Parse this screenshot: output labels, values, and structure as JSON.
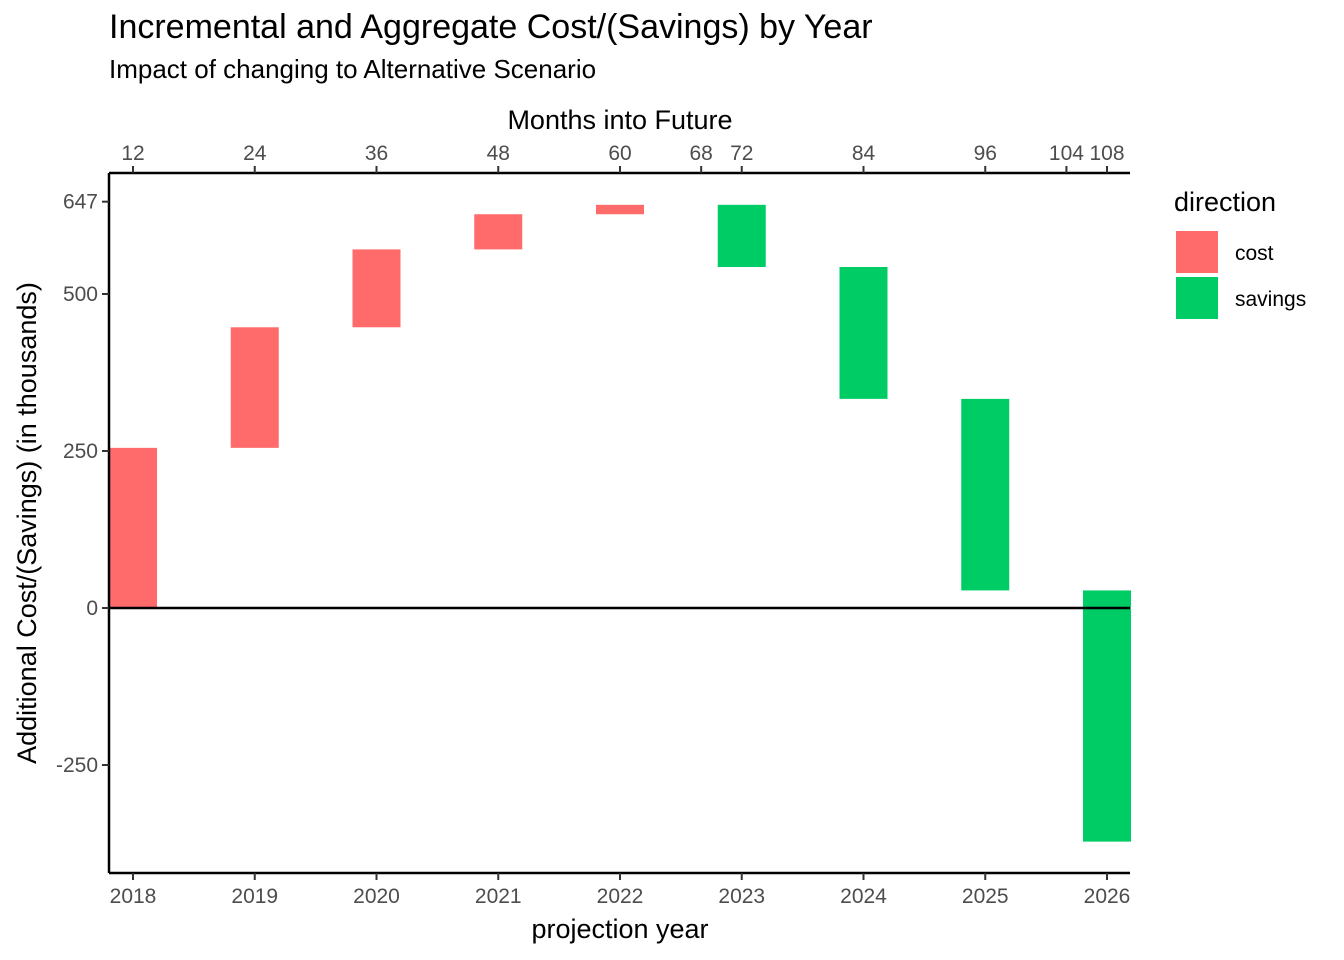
{
  "chart_data": {
    "type": "waterfall",
    "title": "Incremental and Aggregate Cost/(Savings) by Year",
    "subtitle": "Impact of changing to Alternative Scenario",
    "xlabel": "projection year",
    "ylabel": "Additional Cost/(Savings) (in thousands)",
    "secondary_xlabel": "Months into Future",
    "categories": [
      "2018",
      "2019",
      "2020",
      "2021",
      "2022",
      "2023",
      "2024",
      "2025",
      "2026"
    ],
    "bars": [
      {
        "year": "2018",
        "start": 0,
        "end": 255,
        "direction": "cost"
      },
      {
        "year": "2019",
        "start": 255,
        "end": 447,
        "direction": "cost"
      },
      {
        "year": "2020",
        "start": 447,
        "end": 571,
        "direction": "cost"
      },
      {
        "year": "2021",
        "start": 571,
        "end": 627,
        "direction": "cost"
      },
      {
        "year": "2022",
        "start": 627,
        "end": 642,
        "direction": "cost"
      },
      {
        "year": "2023",
        "start": 642,
        "end": 543,
        "direction": "savings"
      },
      {
        "year": "2024",
        "start": 543,
        "end": 333,
        "direction": "savings"
      },
      {
        "year": "2025",
        "start": 333,
        "end": 28,
        "direction": "savings"
      },
      {
        "year": "2026",
        "start": 28,
        "end": -372,
        "direction": "savings"
      }
    ],
    "y_ticks": [
      -250,
      0,
      250,
      500,
      647
    ],
    "ylim": [
      -420,
      695
    ],
    "x_range": [
      2018,
      2026
    ],
    "top_axis_ticks": [
      {
        "month": 12,
        "label": "12"
      },
      {
        "month": 24,
        "label": "24"
      },
      {
        "month": 36,
        "label": "36"
      },
      {
        "month": 48,
        "label": "48"
      },
      {
        "month": 60,
        "label": "60"
      },
      {
        "month": 68,
        "label": "68"
      },
      {
        "month": 72,
        "label": "72"
      },
      {
        "month": 84,
        "label": "84"
      },
      {
        "month": 96,
        "label": "96"
      },
      {
        "month": 104,
        "label": "104"
      },
      {
        "month": 108,
        "label": "108"
      }
    ],
    "legend": {
      "title": "direction",
      "entries": [
        {
          "key": "cost",
          "label": "cost",
          "color": "#ff6b6b"
        },
        {
          "key": "savings",
          "label": "savings",
          "color": "#00cc66"
        }
      ]
    }
  }
}
